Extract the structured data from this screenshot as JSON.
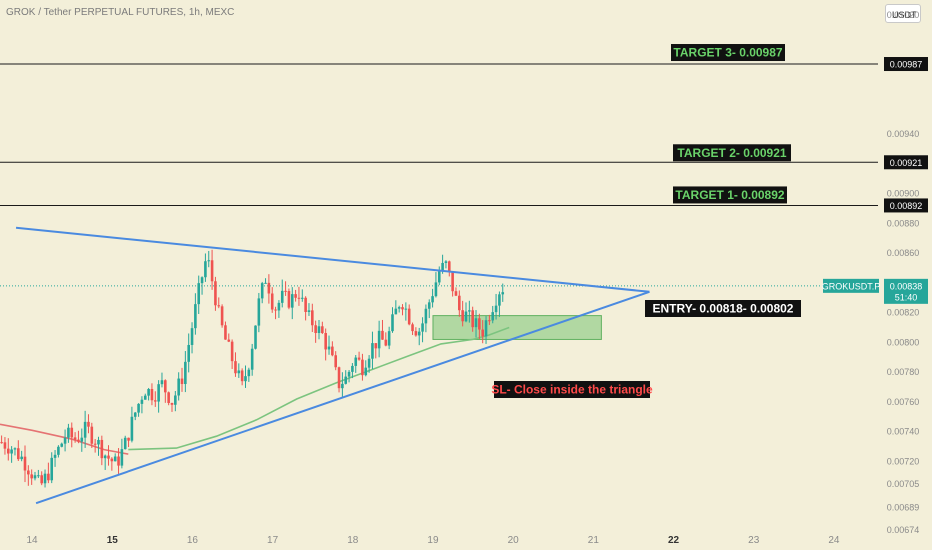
{
  "header": {
    "title": "GROK / Tether PERPETUAL FUTURES, 1h, MEXC",
    "currency_button": "USDT"
  },
  "colors": {
    "background": "#f3efd9",
    "bull": "#26a69a",
    "bear": "#ef5350",
    "triangle": "#4a8ae0",
    "ma_green": "#7cc47f",
    "ma_red": "#e57373",
    "entry_zone": "#9bd08f",
    "label_bg": "#111111",
    "target_text": "#6ad36a",
    "sl_text": "#ff4a4a",
    "price_tag": "#26a69a"
  },
  "chart_data": {
    "type": "candlestick",
    "symbol": "GROKUSDT.P",
    "timeframe": "1h",
    "x_ticks": [
      "14",
      "15",
      "16",
      "17",
      "18",
      "19",
      "20",
      "21",
      "22",
      "23",
      "24"
    ],
    "x_ticks_bold": [
      "15",
      "22"
    ],
    "x_range_days": [
      13.6,
      24.55
    ],
    "y_ticks": [
      "0.01020",
      "0.00940",
      "0.00900",
      "0.00880",
      "0.00860",
      "0.00820",
      "0.00800",
      "0.00780",
      "0.00760",
      "0.00740",
      "0.00720",
      "0.00705",
      "0.00689",
      "0.00674"
    ],
    "y_range": [
      0.00674,
      0.0103
    ],
    "current_price": {
      "label": "GROKUSDT.P",
      "value": "0.00838",
      "countdown": "51:40",
      "price": 0.00838
    },
    "levels": [
      {
        "label": "TARGET 3- 0.00987",
        "price": 0.00987,
        "tag": "0.00987"
      },
      {
        "label": "TARGET 2- 0.00921",
        "price": 0.00921,
        "tag": "0.00921"
      },
      {
        "label": "TARGET 1- 0.00892",
        "price": 0.00892,
        "tag": "0.00892"
      }
    ],
    "entry": {
      "label": "ENTRY- 0.00818- 0.00802",
      "high": 0.00818,
      "low": 0.00802,
      "start_day": 19.0,
      "end_day": 21.1
    },
    "stop_loss": {
      "label": "SL- Close inside the triangle"
    },
    "triangle": {
      "upper": [
        [
          13.8,
          0.00877
        ],
        [
          21.7,
          0.00834
        ]
      ],
      "lower": [
        [
          14.05,
          0.00692
        ],
        [
          21.7,
          0.00834
        ]
      ]
    },
    "ma_red": [
      [
        13.6,
        0.00745
      ],
      [
        14.0,
        0.00741
      ],
      [
        14.5,
        0.00735
      ],
      [
        14.9,
        0.00728
      ],
      [
        15.2,
        0.00725
      ]
    ],
    "ma_green": [
      [
        15.2,
        0.00728
      ],
      [
        15.8,
        0.00729
      ],
      [
        16.3,
        0.00737
      ],
      [
        16.8,
        0.00748
      ],
      [
        17.3,
        0.00762
      ],
      [
        17.8,
        0.00773
      ],
      [
        18.3,
        0.00783
      ],
      [
        18.7,
        0.00791
      ],
      [
        19.1,
        0.00799
      ],
      [
        19.5,
        0.00802
      ],
      [
        19.7,
        0.00805
      ],
      [
        19.95,
        0.0081
      ]
    ],
    "candles_close_path": [
      [
        13.62,
        0.00733
      ],
      [
        13.75,
        0.00729
      ],
      [
        13.88,
        0.00722
      ],
      [
        14.0,
        0.00712
      ],
      [
        14.1,
        0.00703
      ],
      [
        14.2,
        0.00712
      ],
      [
        14.3,
        0.00725
      ],
      [
        14.42,
        0.00738
      ],
      [
        14.55,
        0.00735
      ],
      [
        14.68,
        0.00742
      ],
      [
        14.8,
        0.00734
      ],
      [
        14.92,
        0.00724
      ],
      [
        15.05,
        0.00718
      ],
      [
        15.15,
        0.0073
      ],
      [
        15.28,
        0.00752
      ],
      [
        15.4,
        0.00769
      ],
      [
        15.52,
        0.00765
      ],
      [
        15.62,
        0.00772
      ],
      [
        15.75,
        0.0076
      ],
      [
        15.88,
        0.00778
      ],
      [
        16.0,
        0.00812
      ],
      [
        16.1,
        0.0084
      ],
      [
        16.18,
        0.00858
      ],
      [
        16.26,
        0.00838
      ],
      [
        16.34,
        0.00815
      ],
      [
        16.42,
        0.008
      ],
      [
        16.52,
        0.00785
      ],
      [
        16.62,
        0.0077
      ],
      [
        16.72,
        0.0079
      ],
      [
        16.82,
        0.00825
      ],
      [
        16.92,
        0.00845
      ],
      [
        17.02,
        0.00822
      ],
      [
        17.12,
        0.0083
      ],
      [
        17.22,
        0.00828
      ],
      [
        17.32,
        0.00835
      ],
      [
        17.42,
        0.00818
      ],
      [
        17.52,
        0.00812
      ],
      [
        17.62,
        0.00805
      ],
      [
        17.72,
        0.00792
      ],
      [
        17.82,
        0.00772
      ],
      [
        17.92,
        0.00776
      ],
      [
        18.02,
        0.0079
      ],
      [
        18.12,
        0.00784
      ],
      [
        18.22,
        0.00796
      ],
      [
        18.32,
        0.00802
      ],
      [
        18.42,
        0.008
      ],
      [
        18.52,
        0.00818
      ],
      [
        18.6,
        0.0083
      ],
      [
        18.68,
        0.0082
      ],
      [
        18.76,
        0.0081
      ],
      [
        18.84,
        0.00808
      ],
      [
        18.92,
        0.00822
      ],
      [
        19.02,
        0.00838
      ],
      [
        19.08,
        0.00848
      ],
      [
        19.16,
        0.00852
      ],
      [
        19.24,
        0.00838
      ],
      [
        19.32,
        0.00822
      ],
      [
        19.42,
        0.00818
      ],
      [
        19.52,
        0.00812
      ],
      [
        19.62,
        0.00808
      ],
      [
        19.72,
        0.00822
      ],
      [
        19.82,
        0.00835
      ],
      [
        19.9,
        0.00838
      ]
    ]
  }
}
